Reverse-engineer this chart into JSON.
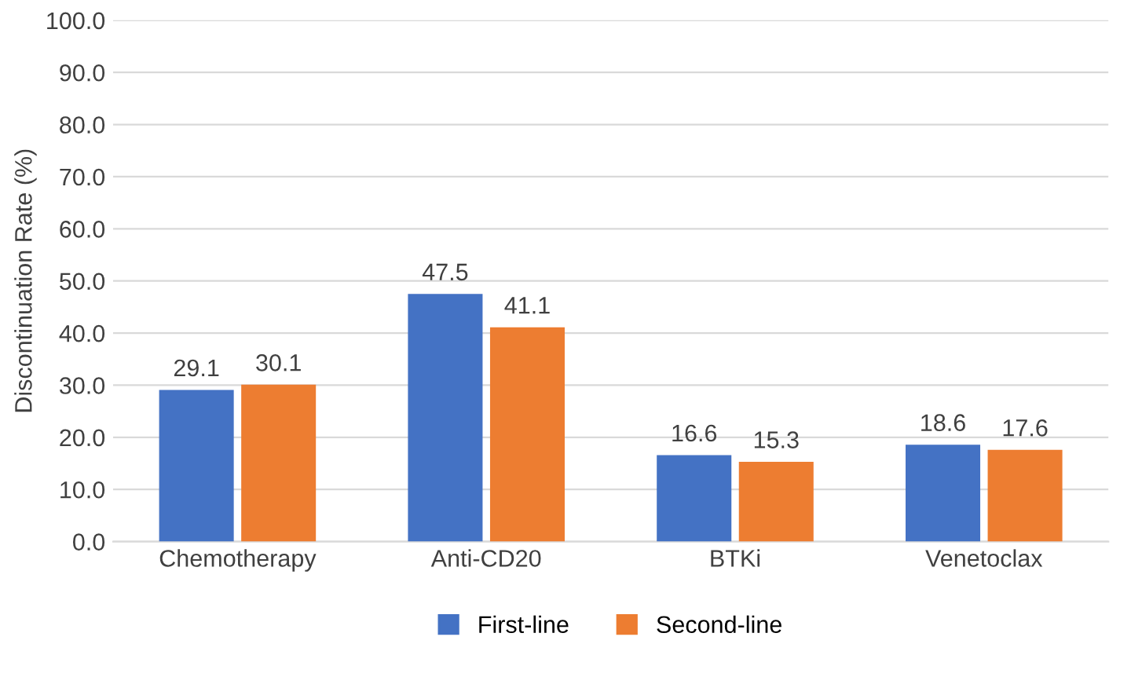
{
  "chart_data": {
    "type": "bar",
    "ylabel": "Discontinuation Rate (%)",
    "categories": [
      "Chemotherapy",
      "Anti-CD20",
      "BTKi",
      "Venetoclax"
    ],
    "series": [
      {
        "name": "First-line",
        "color": "#4472c4",
        "values": [
          29.1,
          47.5,
          16.6,
          18.6
        ]
      },
      {
        "name": "Second-line",
        "color": "#ed7d31",
        "values": [
          30.1,
          41.1,
          15.3,
          17.6
        ]
      }
    ],
    "ylim": [
      0,
      100
    ],
    "yticks": [
      {
        "value": 0,
        "label": "0.0"
      },
      {
        "value": 10,
        "label": "10.0"
      },
      {
        "value": 20,
        "label": "20.0"
      },
      {
        "value": 30,
        "label": "30.0"
      },
      {
        "value": 40,
        "label": "40.0"
      },
      {
        "value": 50,
        "label": "50.0"
      },
      {
        "value": 60,
        "label": "60.0"
      },
      {
        "value": 70,
        "label": "70.0"
      },
      {
        "value": 80,
        "label": "80.0"
      },
      {
        "value": 90,
        "label": "90.0"
      },
      {
        "value": 100,
        "label": "100.0"
      }
    ],
    "grid": "y",
    "legend": "bottom",
    "data_labels": true
  }
}
